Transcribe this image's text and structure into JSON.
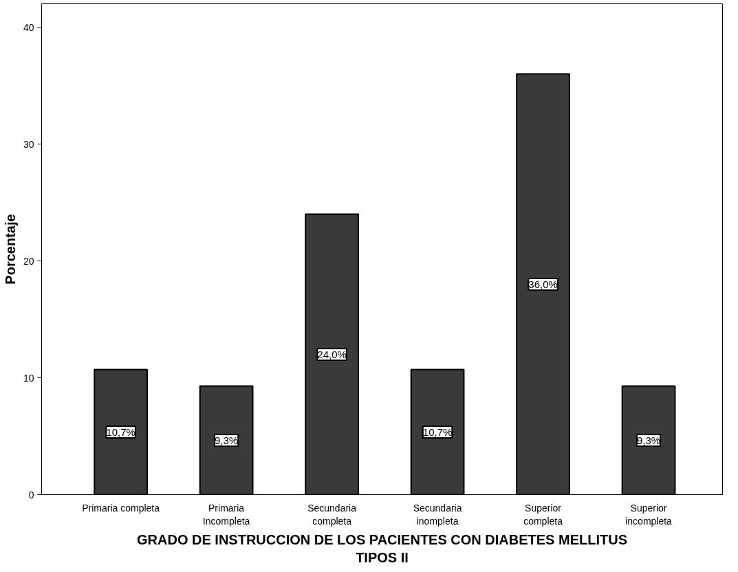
{
  "chart_data": {
    "type": "bar",
    "xlabel": "GRADO DE INSTRUCCION DE LOS PACIENTES CON DIABETES MELLITUS\nTIPOS II",
    "ylabel": "Porcentaje",
    "categories": [
      "Primaria completa",
      "Primaria\nIncompleta",
      "Secundaria\ncompleta",
      "Secundaria\ninompleta",
      "Superior\ncompleta",
      "Superior\nincompleta"
    ],
    "values": [
      10.7,
      9.3,
      24.0,
      10.7,
      36.0,
      9.3
    ],
    "value_labels": [
      "10,7%",
      "9,3%",
      "24,0%",
      "10,7%",
      "36,0%",
      "9,3%"
    ],
    "color": "#3a3a3a",
    "ylim": [
      0,
      42
    ],
    "yticks": [
      0,
      10,
      20,
      30,
      40
    ],
    "grid": false
  }
}
